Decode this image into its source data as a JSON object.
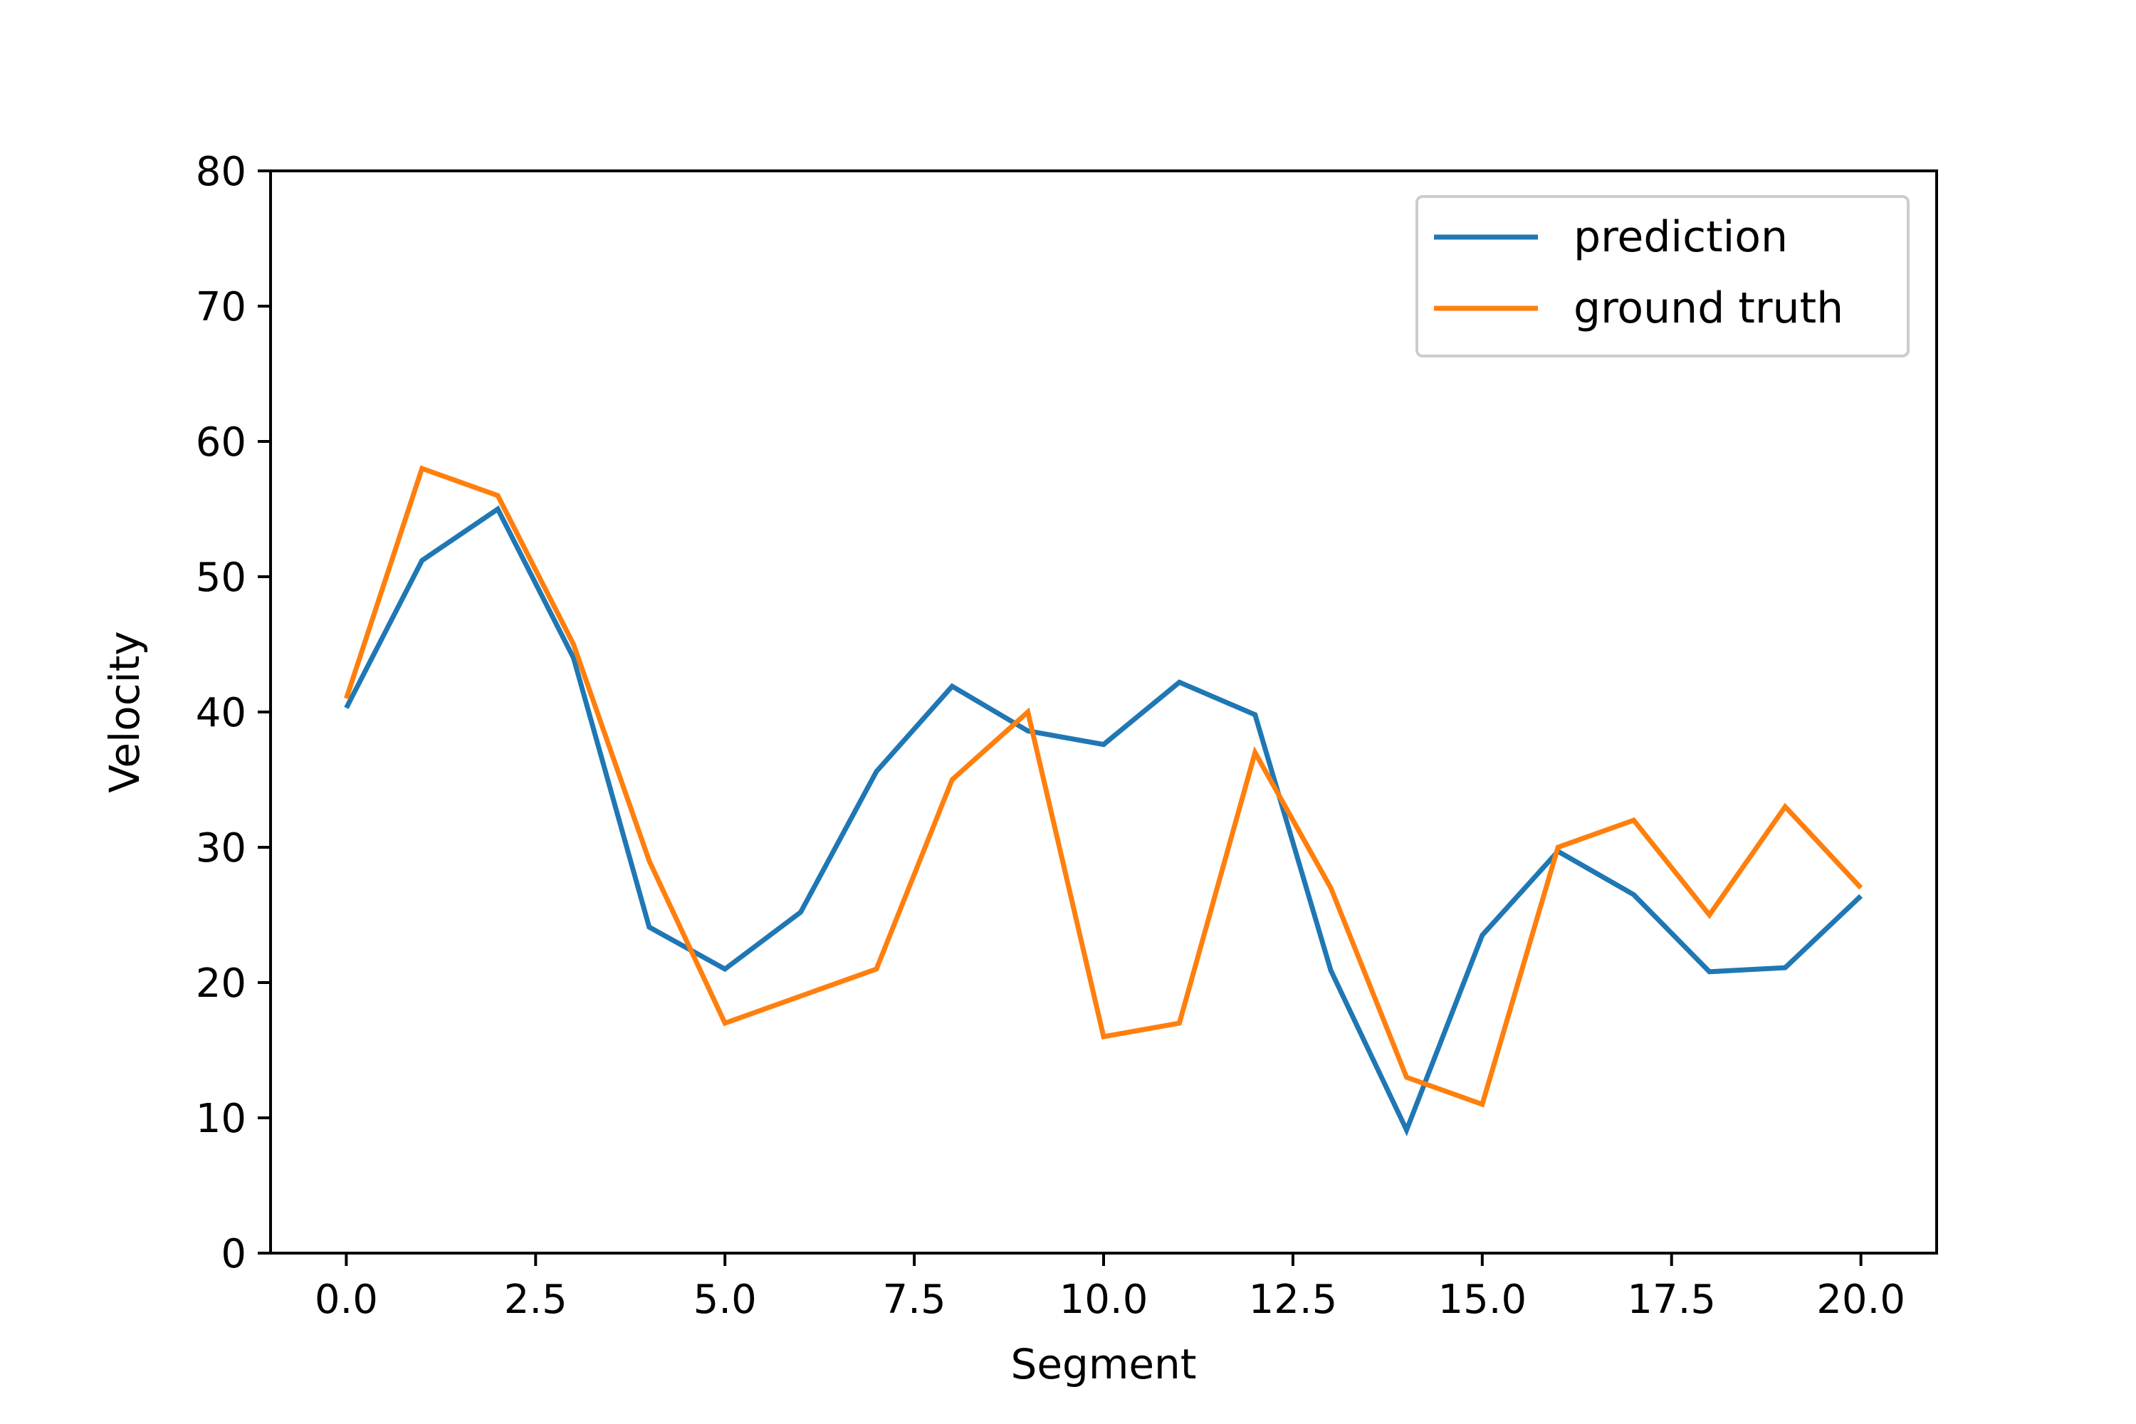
{
  "chart_data": {
    "type": "line",
    "title": "",
    "xlabel": "Segment",
    "ylabel": "Velocity",
    "xlim": [
      -1,
      21
    ],
    "ylim": [
      0,
      80
    ],
    "x_ticks": [
      0.0,
      2.5,
      5.0,
      7.5,
      10.0,
      12.5,
      15.0,
      17.5,
      20.0
    ],
    "x_tick_labels": [
      "0.0",
      "2.5",
      "5.0",
      "7.5",
      "10.0",
      "12.5",
      "15.0",
      "17.5",
      "20.0"
    ],
    "y_ticks": [
      0,
      10,
      20,
      30,
      40,
      50,
      60,
      70,
      80
    ],
    "y_tick_labels": [
      "0",
      "10",
      "20",
      "30",
      "40",
      "50",
      "60",
      "70",
      "80"
    ],
    "grid": false,
    "legend_position": "top-right",
    "x": [
      0,
      1,
      2,
      3,
      4,
      5,
      6,
      7,
      8,
      9,
      10,
      11,
      12,
      13,
      14,
      15,
      16,
      17,
      18,
      19,
      20
    ],
    "series": [
      {
        "name": "prediction",
        "color": "#1f77b4",
        "values": [
          40.3,
          51.2,
          55.0,
          44.0,
          24.1,
          21.0,
          25.2,
          35.6,
          41.9,
          38.6,
          37.6,
          42.2,
          39.8,
          20.9,
          9.1,
          23.5,
          29.7,
          26.5,
          20.8,
          21.1,
          26.4
        ]
      },
      {
        "name": "ground truth",
        "color": "#ff7f0e",
        "values": [
          41,
          58,
          56,
          45,
          29,
          17,
          19,
          21,
          35,
          40,
          16,
          17,
          37,
          27,
          13,
          11,
          30,
          32,
          25,
          33,
          27
        ]
      }
    ]
  }
}
